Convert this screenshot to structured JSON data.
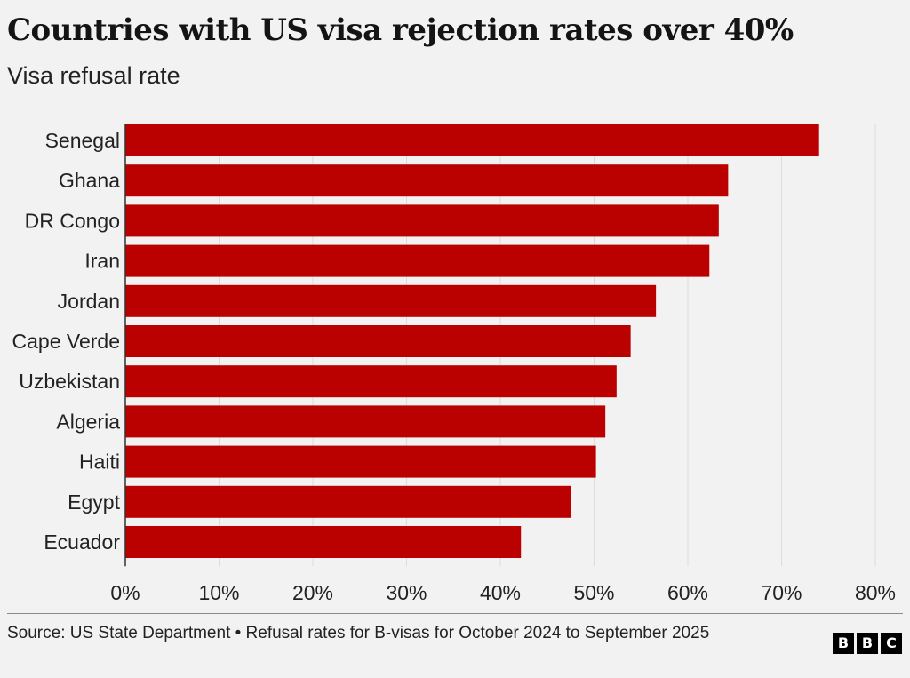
{
  "header": {
    "title": "Countries with US visa rejection rates over 40%",
    "subtitle": "Visa refusal rate"
  },
  "footer": {
    "source": "Source: US State Department • Refusal rates for B-visas for October 2024 to September 2025",
    "logo_letters": [
      "B",
      "B",
      "C"
    ]
  },
  "colors": {
    "bar": "#bb0000",
    "grid": "#dcdcdc",
    "axis": "#333333",
    "background": "#f2f2f2"
  },
  "chart_data": {
    "type": "bar",
    "orientation": "horizontal",
    "title": "Countries with US visa rejection rates over 40%",
    "subtitle": "Visa refusal rate",
    "categories": [
      "Senegal",
      "Ghana",
      "DR Congo",
      "Iran",
      "Jordan",
      "Cape Verde",
      "Uzbekistan",
      "Algeria",
      "Haiti",
      "Egypt",
      "Ecuador"
    ],
    "values": [
      74.0,
      64.3,
      63.3,
      62.3,
      56.6,
      53.9,
      52.4,
      51.2,
      50.2,
      47.5,
      42.2
    ],
    "unit": "%",
    "xlim": [
      0,
      80
    ],
    "xticks": [
      0,
      10,
      20,
      30,
      40,
      50,
      60,
      70,
      80
    ],
    "xtick_labels": [
      "0%",
      "10%",
      "20%",
      "30%",
      "40%",
      "50%",
      "60%",
      "70%",
      "80%"
    ],
    "grid": true,
    "legend": "none"
  }
}
